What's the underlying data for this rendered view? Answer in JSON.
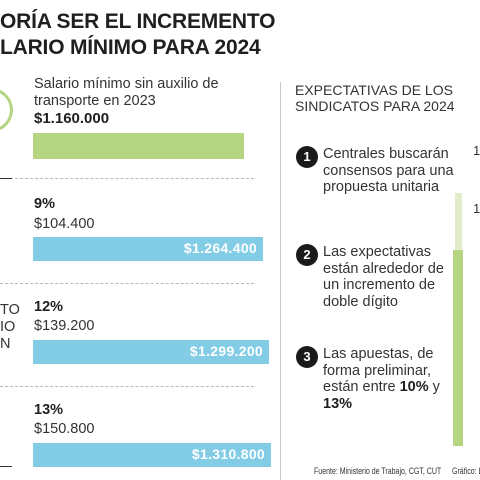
{
  "title": {
    "line1": "ORÍA SER EL INCREMENTO",
    "line2": "LARIO MÍNIMO PARA 2024"
  },
  "left_fragments": [
    "TO",
    "IO",
    "N"
  ],
  "chart_data": {
    "type": "bar",
    "base": {
      "label": "Salario mínimo sin auxilio de transporte en 2023",
      "value_label": "$1.160.000",
      "value": 1160000
    },
    "scenarios": [
      {
        "pct_label": "9%",
        "increase_label": "$104.400",
        "total_label": "$1.264.400",
        "total": 1264400
      },
      {
        "pct_label": "12%",
        "increase_label": "$139.200",
        "total_label": "$1.299.200",
        "total": 1299200
      },
      {
        "pct_label": "13%",
        "increase_label": "$150.800",
        "total_label": "$1.310.800",
        "total": 1310800
      }
    ],
    "colors": {
      "base": "#b5d583",
      "scenario": "#82cce6"
    }
  },
  "expectations": {
    "title": "EXPECTATIVAS DE LOS SINDICATOS PARA 2024",
    "items": [
      {
        "num": "1",
        "text": "Centrales buscarán consensos para una propuesta unitaria"
      },
      {
        "num": "2",
        "text": "Las expectativas están alrededor de un incremento de doble dígito"
      },
      {
        "num": "3",
        "text_pre": "Las apuestas, de forma preliminar, están entre ",
        "text_b1": "10%",
        "text_mid": " y ",
        "text_b2": "13%"
      }
    ]
  },
  "right_fragments": [
    "1",
    "1"
  ],
  "source": "Fuente: Ministerio de Trabajo, CGT, CUT",
  "credit": "Gráfico: L"
}
